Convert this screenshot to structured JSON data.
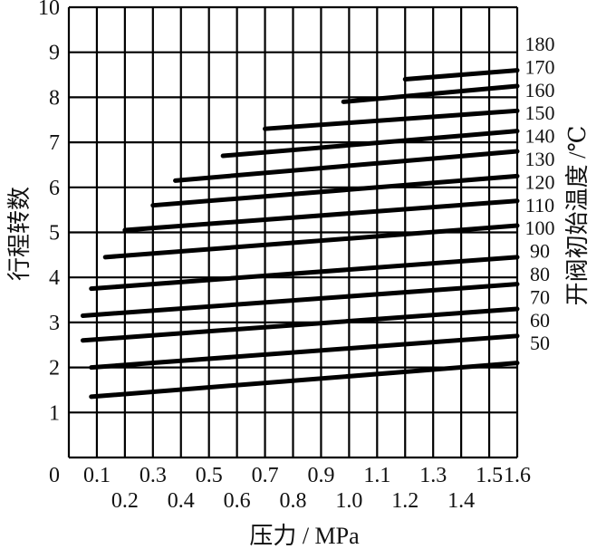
{
  "chart_data": {
    "type": "line",
    "xlabel": "压力 / MPa",
    "ylabel": "行程转数",
    "y2label": "开阀初始温度 /℃",
    "xlim": [
      0,
      1.6
    ],
    "ylim": [
      0,
      10
    ],
    "x_ticks_upper": [
      "0",
      "0.1",
      "0.3",
      "0.5",
      "0.7",
      "0.9",
      "1.1",
      "1.3",
      "1.5",
      "1.6"
    ],
    "x_ticks_lower": [
      "0.2",
      "0.4",
      "0.6",
      "0.8",
      "1.0",
      "1.2",
      "1.4"
    ],
    "y_ticks": [
      "1",
      "2",
      "3",
      "4",
      "5",
      "6",
      "7",
      "8",
      "9",
      "10"
    ],
    "y2_ticks": [
      "180",
      "170",
      "160",
      "150",
      "140",
      "130",
      "120",
      "110",
      "100",
      "90",
      "80",
      "70",
      "60",
      "50"
    ],
    "grid": true,
    "series": [
      {
        "name": "50",
        "x": [
          0.08,
          1.6
        ],
        "y": [
          1.35,
          2.1
        ]
      },
      {
        "name": "60",
        "x": [
          0.08,
          1.6
        ],
        "y": [
          2.0,
          2.7
        ]
      },
      {
        "name": "70",
        "x": [
          0.05,
          1.6
        ],
        "y": [
          2.6,
          3.3
        ]
      },
      {
        "name": "80",
        "x": [
          0.05,
          1.6
        ],
        "y": [
          3.15,
          3.85
        ]
      },
      {
        "name": "90",
        "x": [
          0.08,
          1.6
        ],
        "y": [
          3.75,
          4.45
        ]
      },
      {
        "name": "100",
        "x": [
          0.13,
          1.6
        ],
        "y": [
          4.45,
          5.15
        ]
      },
      {
        "name": "110",
        "x": [
          0.2,
          1.6
        ],
        "y": [
          5.05,
          5.7
        ]
      },
      {
        "name": "120",
        "x": [
          0.3,
          1.6
        ],
        "y": [
          5.6,
          6.25
        ]
      },
      {
        "name": "130",
        "x": [
          0.38,
          1.6
        ],
        "y": [
          6.15,
          6.8
        ]
      },
      {
        "name": "140",
        "x": [
          0.55,
          1.6
        ],
        "y": [
          6.7,
          7.25
        ]
      },
      {
        "name": "150",
        "x": [
          0.7,
          1.6
        ],
        "y": [
          7.3,
          7.7
        ]
      },
      {
        "name": "160",
        "x": [
          0.98,
          1.6
        ],
        "y": [
          7.9,
          8.25
        ]
      },
      {
        "name": "170",
        "x": [
          1.2,
          1.6
        ],
        "y": [
          8.4,
          8.6
        ]
      }
    ]
  }
}
